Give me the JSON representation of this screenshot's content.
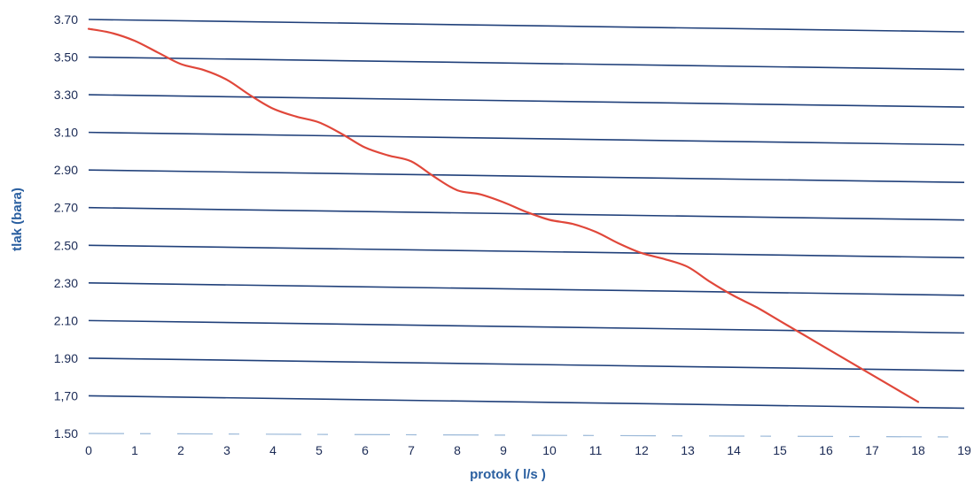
{
  "chart_data": {
    "type": "line",
    "title": "",
    "xlabel": "protok ( l/s )",
    "ylabel": "tlak (bara)",
    "xlim": [
      0,
      19
    ],
    "ylim": [
      1.5,
      3.7
    ],
    "x_ticks": [
      "0",
      "1",
      "2",
      "3",
      "4",
      "5",
      "6",
      "7",
      "8",
      "9",
      "10",
      "11",
      "12",
      "13",
      "14",
      "15",
      "16",
      "17",
      "18",
      "19"
    ],
    "y_ticks": [
      "1.50",
      "1,70",
      "1.90",
      "2.10",
      "2.30",
      "2.50",
      "2.70",
      "2.90",
      "3.10",
      "3.30",
      "3.50",
      "3.70"
    ],
    "grid": true,
    "series": [
      {
        "color": "#e0473a",
        "x": [
          0,
          0.5,
          1,
          1.5,
          2,
          2.5,
          3,
          3.5,
          4,
          4.5,
          5,
          5.5,
          6,
          6.5,
          7,
          7.5,
          8,
          8.5,
          9,
          9.5,
          10,
          10.5,
          11,
          11.5,
          12,
          12.5,
          13,
          13.5,
          14,
          14.5,
          15,
          15.5,
          16,
          16.5,
          17,
          17.5,
          18
        ],
        "y": [
          3.65,
          3.63,
          3.59,
          3.53,
          3.47,
          3.44,
          3.39,
          3.31,
          3.24,
          3.2,
          3.17,
          3.11,
          3.04,
          3.0,
          2.97,
          2.89,
          2.82,
          2.8,
          2.76,
          2.71,
          2.67,
          2.65,
          2.61,
          2.55,
          2.5,
          2.47,
          2.43,
          2.35,
          2.28,
          2.22,
          2.15,
          2.08,
          2.01,
          1.94,
          1.87,
          1.8,
          1.73
        ]
      }
    ]
  }
}
